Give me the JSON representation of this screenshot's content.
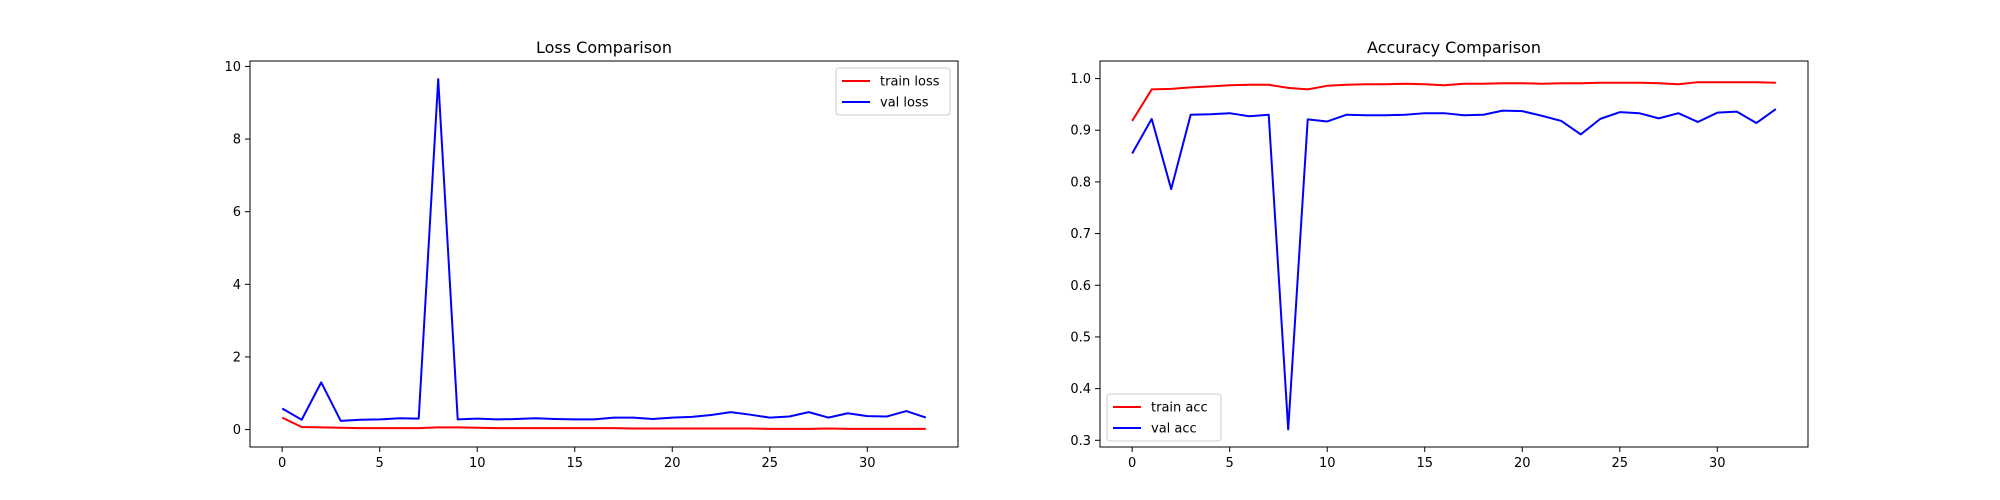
{
  "chart_data": [
    {
      "type": "line",
      "title": "Loss Comparison",
      "xlabel": "",
      "ylabel": "",
      "xlim": [
        -1.65,
        34.65
      ],
      "ylim": [
        -0.48,
        10.15
      ],
      "xticks": [
        0,
        5,
        10,
        15,
        20,
        25,
        30
      ],
      "yticks": [
        0,
        2,
        4,
        6,
        8,
        10
      ],
      "grid": false,
      "legend_position": "top-right",
      "series": [
        {
          "name": "train loss",
          "color": "#ff0000",
          "x": [
            0,
            1,
            2,
            3,
            4,
            5,
            6,
            7,
            8,
            9,
            10,
            11,
            12,
            13,
            14,
            15,
            16,
            17,
            18,
            19,
            20,
            21,
            22,
            23,
            24,
            25,
            26,
            27,
            28,
            29,
            30,
            31,
            32,
            33
          ],
          "y": [
            0.33,
            0.07,
            0.06,
            0.05,
            0.04,
            0.04,
            0.04,
            0.04,
            0.06,
            0.06,
            0.05,
            0.04,
            0.04,
            0.04,
            0.04,
            0.04,
            0.04,
            0.04,
            0.03,
            0.03,
            0.03,
            0.03,
            0.03,
            0.03,
            0.03,
            0.02,
            0.02,
            0.02,
            0.03,
            0.02,
            0.02,
            0.02,
            0.02,
            0.02
          ]
        },
        {
          "name": "val loss",
          "color": "#0000ff",
          "x": [
            0,
            1,
            2,
            3,
            4,
            5,
            6,
            7,
            8,
            9,
            10,
            11,
            12,
            13,
            14,
            15,
            16,
            17,
            18,
            19,
            20,
            21,
            22,
            23,
            24,
            25,
            26,
            27,
            28,
            29,
            30,
            31,
            32,
            33
          ],
          "y": [
            0.58,
            0.27,
            1.3,
            0.24,
            0.27,
            0.28,
            0.31,
            0.3,
            9.65,
            0.28,
            0.3,
            0.28,
            0.29,
            0.31,
            0.29,
            0.28,
            0.28,
            0.33,
            0.33,
            0.29,
            0.33,
            0.35,
            0.4,
            0.48,
            0.41,
            0.33,
            0.36,
            0.48,
            0.33,
            0.45,
            0.37,
            0.36,
            0.51,
            0.33
          ]
        }
      ]
    },
    {
      "type": "line",
      "title": "Accuracy Comparison",
      "xlabel": "",
      "ylabel": "",
      "xlim": [
        -1.65,
        34.65
      ],
      "ylim": [
        0.287,
        1.034
      ],
      "xticks": [
        0,
        5,
        10,
        15,
        20,
        25,
        30
      ],
      "yticks": [
        0.3,
        0.4,
        0.5,
        0.6,
        0.7,
        0.8,
        0.9,
        1.0
      ],
      "ytick_labels": [
        "0.3",
        "0.4",
        "0.5",
        "0.6",
        "0.7",
        "0.8",
        "0.9",
        "1.0"
      ],
      "grid": false,
      "legend_position": "bottom-left",
      "series": [
        {
          "name": "train acc",
          "color": "#ff0000",
          "x": [
            0,
            1,
            2,
            3,
            4,
            5,
            6,
            7,
            8,
            9,
            10,
            11,
            12,
            13,
            14,
            15,
            16,
            17,
            18,
            19,
            20,
            21,
            22,
            23,
            24,
            25,
            26,
            27,
            28,
            29,
            30,
            31,
            32,
            33
          ],
          "y": [
            0.918,
            0.979,
            0.98,
            0.983,
            0.985,
            0.987,
            0.988,
            0.988,
            0.982,
            0.979,
            0.986,
            0.988,
            0.989,
            0.989,
            0.99,
            0.989,
            0.987,
            0.99,
            0.99,
            0.991,
            0.991,
            0.99,
            0.991,
            0.991,
            0.992,
            0.992,
            0.992,
            0.991,
            0.989,
            0.993,
            0.993,
            0.993,
            0.993,
            0.992
          ]
        },
        {
          "name": "val acc",
          "color": "#0000ff",
          "x": [
            0,
            1,
            2,
            3,
            4,
            5,
            6,
            7,
            8,
            9,
            10,
            11,
            12,
            13,
            14,
            15,
            16,
            17,
            18,
            19,
            20,
            21,
            22,
            23,
            24,
            25,
            26,
            27,
            28,
            29,
            30,
            31,
            32,
            33
          ],
          "y": [
            0.855,
            0.922,
            0.786,
            0.93,
            0.931,
            0.933,
            0.927,
            0.93,
            0.321,
            0.921,
            0.917,
            0.93,
            0.929,
            0.929,
            0.93,
            0.933,
            0.933,
            0.929,
            0.93,
            0.938,
            0.937,
            0.928,
            0.918,
            0.892,
            0.922,
            0.935,
            0.933,
            0.923,
            0.933,
            0.916,
            0.934,
            0.936,
            0.914,
            0.941
          ]
        }
      ]
    }
  ]
}
